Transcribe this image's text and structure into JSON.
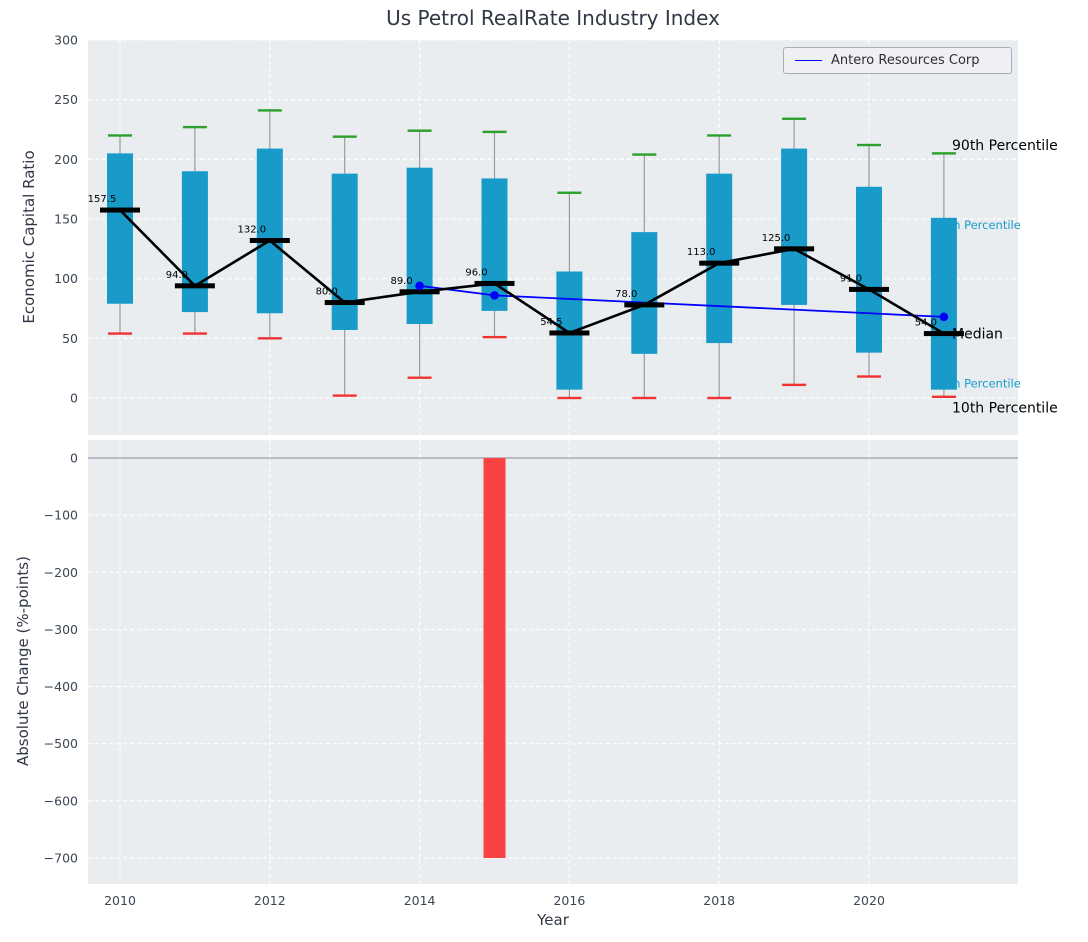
{
  "title": "Us Petrol RealRate Industry Index",
  "legend": {
    "label": "Antero Resources Corp"
  },
  "axes": {
    "top_ylabel": "Economic Capital Ratio",
    "bottom_ylabel": "Absolute Change (%-points)",
    "xlabel": "Year"
  },
  "colors": {
    "box": "#189bc9",
    "p90_cap": "#2ca02c",
    "p10_cap": "#ef3434",
    "median": "#000000",
    "company_line": "#0000ff",
    "negative_bar": "#f94343",
    "plot_bg": "#eaedf0",
    "grid": "#ffffff",
    "tick_text": "#3b4754",
    "whisker": "#9a9a9a"
  },
  "chart_data": [
    {
      "type": "bar",
      "subtype": "percentile-boxes-with-median-line",
      "title": "Us Petrol RealRate Industry Index",
      "ylabel": "Economic Capital Ratio",
      "yticks": [
        0,
        50,
        100,
        150,
        200,
        250,
        300
      ],
      "ylim": [
        -31,
        305
      ],
      "years": [
        2010,
        2011,
        2012,
        2013,
        2014,
        2015,
        2016,
        2017,
        2018,
        2019,
        2020,
        2021
      ],
      "p90": [
        220,
        227,
        241,
        219,
        224,
        223,
        172,
        204,
        220,
        234,
        212,
        205
      ],
      "p75": [
        205,
        190,
        209,
        188,
        193,
        184,
        106,
        139,
        188,
        209,
        177,
        151
      ],
      "median": [
        157.5,
        94,
        132,
        80,
        89,
        96,
        54.5,
        78,
        113,
        125,
        91,
        54
      ],
      "median_labels": [
        "157.5",
        "94.0",
        "132.0",
        "80.0",
        "89.0",
        "96.0",
        "54.5",
        "78.0",
        "113.0",
        "125.0",
        "91.0",
        "54.0"
      ],
      "p25": [
        79,
        72,
        71,
        57,
        62,
        73,
        7,
        37,
        46,
        78,
        38,
        7
      ],
      "p10": [
        54,
        54,
        50,
        2,
        17,
        51,
        0,
        0,
        0,
        11,
        18,
        1
      ],
      "series": [
        {
          "name": "Antero Resources Corp",
          "x": [
            2014,
            2015,
            2021
          ],
          "values": [
            94,
            86,
            68
          ]
        }
      ],
      "annotations": [
        {
          "text": "90th Percentile",
          "value": 212,
          "color": "#000000",
          "size": 14,
          "layer": "front"
        },
        {
          "text": "75th Percentile",
          "value": 145,
          "color": "#189bc9",
          "size": 11.5,
          "layer": "back"
        },
        {
          "text": "Median",
          "value": 54,
          "color": "#000000",
          "size": 14,
          "layer": "front"
        },
        {
          "text": "25th Percentile",
          "value": 12,
          "color": "#189bc9",
          "size": 11.5,
          "layer": "back"
        },
        {
          "text": "10th Percentile",
          "value": -8,
          "color": "#000000",
          "size": 14,
          "layer": "front"
        }
      ],
      "legend_position": "upper right",
      "grid": true
    },
    {
      "type": "bar",
      "ylabel": "Absolute Change (%-points)",
      "xlabel": "Year",
      "yticks": [
        0,
        -100,
        -200,
        -300,
        -400,
        -500,
        -600,
        -700
      ],
      "ylim": [
        -745,
        31
      ],
      "xticks": [
        2010,
        2012,
        2014,
        2016,
        2018,
        2020
      ],
      "bars": [
        {
          "x": 2015,
          "value": -700
        }
      ],
      "grid": true
    }
  ]
}
